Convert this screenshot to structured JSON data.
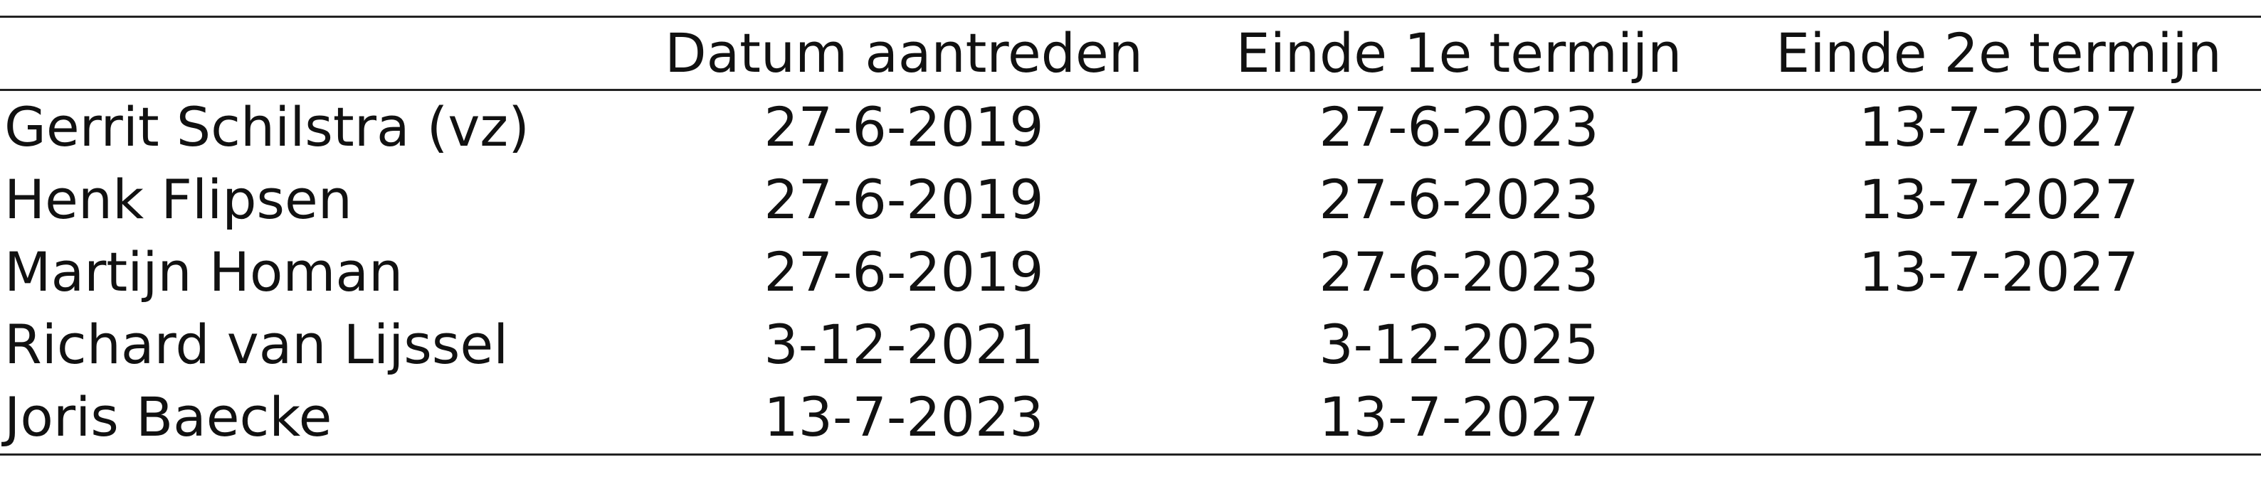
{
  "table": {
    "headers": [
      "",
      "Datum aantreden",
      "Einde 1e termijn",
      "Einde 2e termijn"
    ],
    "rows": [
      [
        "Gerrit Schilstra (vz)",
        "27-6-2019",
        "27-6-2023",
        "13-7-2027"
      ],
      [
        "Henk Flipsen",
        "27-6-2019",
        "27-6-2023",
        "13-7-2027"
      ],
      [
        "Martijn Homan",
        "27-6-2019",
        "27-6-2023",
        "13-7-2027"
      ],
      [
        "Richard van Lijssel",
        "3-12-2021",
        "3-12-2025",
        ""
      ],
      [
        "Joris Baecke",
        "13-7-2023",
        "13-7-2027",
        ""
      ]
    ]
  }
}
